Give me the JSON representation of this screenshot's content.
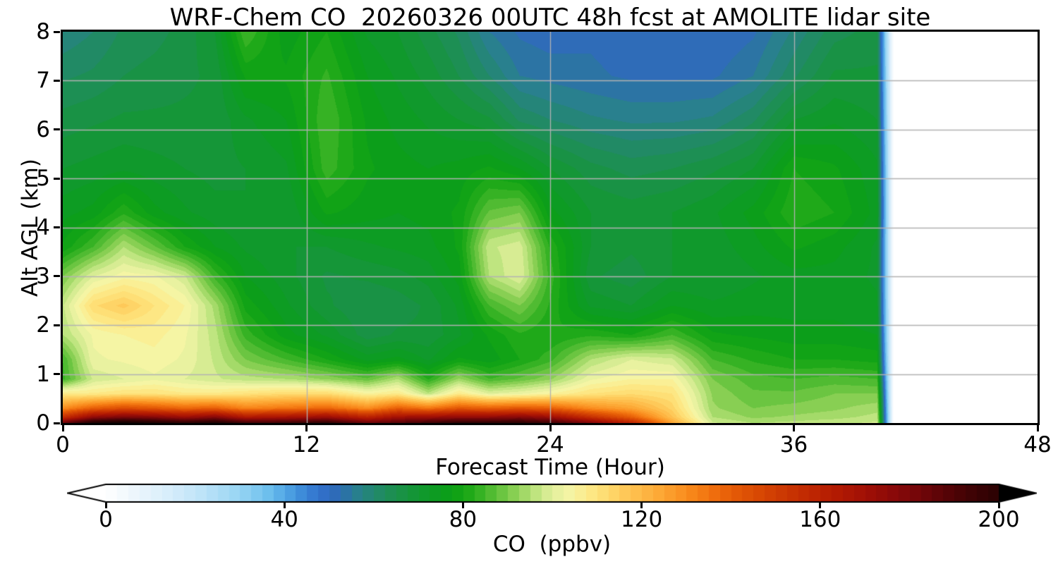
{
  "title": "WRF-Chem CO  20260326 00UTC 48h fcst at AMOLITE lidar site",
  "plot": {
    "xlabel": "Forecast Time (Hour)",
    "ylabel": "Alt AGL (km)",
    "x_ticks": [
      "0",
      "12",
      "24",
      "36",
      "48"
    ],
    "x_tick_values": [
      0,
      12,
      24,
      36,
      48
    ],
    "y_ticks": [
      "0",
      "1",
      "2",
      "3",
      "4",
      "5",
      "6",
      "7",
      "8"
    ],
    "y_tick_values": [
      0,
      1,
      2,
      3,
      4,
      5,
      6,
      7,
      8
    ],
    "xlim": [
      0,
      48
    ],
    "ylim": [
      0,
      8
    ],
    "grid": true,
    "grid_color": "#b2b2b2",
    "frame_color": "#000000"
  },
  "colorbar": {
    "label": "CO  (ppbv)",
    "ticks": [
      "0",
      "40",
      "80",
      "120",
      "160",
      "200"
    ],
    "tick_values": [
      0,
      40,
      80,
      120,
      160,
      200
    ],
    "vmin": 0,
    "vmax": 200,
    "level_step": 2.5,
    "extend": "both",
    "under_color": "#ffffff",
    "over_color": "#000000"
  },
  "chart_data": {
    "type": "heatmap",
    "title": "WRF-Chem CO  20260326 00UTC 48h fcst at AMOLITE lidar site",
    "xlabel": "Forecast Time (Hour)",
    "ylabel": "Alt AGL (km)",
    "zlabel": "CO (ppbv)",
    "x_range_hours": [
      0,
      48
    ],
    "y_range_km": [
      0,
      8
    ],
    "data_ends_at_hour": 40.5,
    "note": "Filled contour of CO (ppbv) vs forecast hour and altitude AGL; values after ~hour 40.5 are missing (white). Rows correspond to y_alt_km (ascending), columns to x_hours.",
    "x_hours": [
      0,
      1.5,
      3,
      4.5,
      6,
      7.5,
      9,
      11,
      13,
      15,
      16.5,
      18,
      19.5,
      21,
      22.5,
      24,
      26,
      28,
      30,
      32,
      34,
      36,
      38,
      40.1,
      40.9,
      48
    ],
    "y_alt_km": [
      0,
      0.12,
      0.3,
      0.6,
      0.9,
      1.3,
      1.8,
      2.4,
      3.0,
      3.6,
      4.3,
      5.2,
      6.2,
      7.1,
      8.0
    ],
    "values_ppbv_rows_by_alt": [
      [
        185,
        205,
        210,
        205,
        200,
        205,
        195,
        195,
        200,
        185,
        190,
        195,
        200,
        200,
        200,
        195,
        180,
        160,
        125,
        98,
        95,
        96,
        97,
        98,
        0,
        0
      ],
      [
        155,
        175,
        180,
        178,
        172,
        178,
        165,
        168,
        172,
        160,
        170,
        172,
        175,
        175,
        178,
        172,
        155,
        140,
        118,
        95,
        92,
        93,
        94,
        96,
        0,
        0
      ],
      [
        130,
        140,
        145,
        142,
        138,
        140,
        132,
        135,
        138,
        130,
        140,
        135,
        142,
        140,
        142,
        140,
        130,
        125,
        114,
        93,
        90,
        91,
        92,
        94,
        0,
        0
      ],
      [
        108,
        108,
        110,
        110,
        108,
        108,
        110,
        112,
        112,
        105,
        108,
        96,
        108,
        100,
        102,
        105,
        110,
        112,
        110,
        92,
        88,
        88,
        90,
        90,
        0,
        0
      ],
      [
        84,
        98,
        100,
        102,
        100,
        98,
        96,
        95,
        92,
        88,
        95,
        82,
        93,
        85,
        88,
        92,
        102,
        105,
        105,
        90,
        86,
        85,
        86,
        85,
        0,
        0
      ],
      [
        85,
        102,
        103,
        104,
        102,
        97,
        90,
        85,
        80,
        74,
        76,
        72,
        78,
        76,
        80,
        84,
        95,
        100,
        98,
        85,
        82,
        80,
        80,
        79,
        0,
        0
      ],
      [
        95,
        103,
        105,
        106,
        103,
        96,
        84,
        76,
        72,
        66,
        68,
        68,
        72,
        78,
        82,
        80,
        82,
        80,
        85,
        78,
        77,
        76,
        76,
        75,
        0,
        0
      ],
      [
        97,
        112,
        116,
        110,
        105,
        94,
        79,
        73,
        68,
        65,
        66,
        68,
        73,
        85,
        90,
        82,
        72,
        70,
        75,
        73,
        74,
        74,
        74,
        73,
        0,
        0
      ],
      [
        90,
        100,
        104,
        103,
        98,
        84,
        75,
        71,
        67,
        68,
        69,
        71,
        76,
        95,
        100,
        84,
        68,
        66,
        70,
        70,
        72,
        74,
        74,
        72,
        0,
        0
      ],
      [
        78,
        85,
        95,
        88,
        80,
        75,
        72,
        70,
        70,
        72,
        73,
        74,
        78,
        97,
        99,
        82,
        70,
        68,
        70,
        71,
        74,
        78,
        76,
        72,
        0,
        0
      ],
      [
        74,
        76,
        82,
        76,
        73,
        71,
        70,
        70,
        78,
        76,
        75,
        76,
        78,
        88,
        90,
        76,
        70,
        69,
        70,
        72,
        76,
        82,
        80,
        74,
        0,
        0
      ],
      [
        70,
        71,
        72,
        71,
        70,
        69,
        70,
        72,
        84,
        78,
        76,
        75,
        76,
        78,
        75,
        70,
        66,
        64,
        65,
        67,
        70,
        80,
        78,
        73,
        0,
        0
      ],
      [
        66,
        67,
        68,
        68,
        68,
        68,
        72,
        75,
        85,
        77,
        74,
        72,
        70,
        68,
        62,
        60,
        58,
        57,
        57,
        58,
        62,
        70,
        72,
        70,
        0,
        0
      ],
      [
        62,
        63,
        65,
        66,
        67,
        68,
        78,
        78,
        83,
        75,
        72,
        69,
        65,
        60,
        55,
        54,
        53,
        52,
        52,
        52,
        55,
        62,
        68,
        68,
        0,
        0
      ],
      [
        58,
        60,
        63,
        64,
        66,
        70,
        85,
        76,
        80,
        72,
        70,
        66,
        62,
        55,
        52,
        51,
        52,
        51,
        50,
        50,
        52,
        58,
        64,
        66,
        0,
        0
      ]
    ],
    "colormap_stops": [
      [
        0,
        "#ffffff"
      ],
      [
        6,
        "#eef7fd"
      ],
      [
        14,
        "#d8eefb"
      ],
      [
        22,
        "#bce3f8"
      ],
      [
        30,
        "#97d5f4"
      ],
      [
        36,
        "#6fc1ee"
      ],
      [
        40,
        "#52a8e6"
      ],
      [
        44,
        "#3d8bd9"
      ],
      [
        48,
        "#3270cc"
      ],
      [
        52,
        "#2e6bb4"
      ],
      [
        56,
        "#297f90"
      ],
      [
        60,
        "#23886e"
      ],
      [
        64,
        "#1d8f52"
      ],
      [
        68,
        "#16953b"
      ],
      [
        72,
        "#0f9a29"
      ],
      [
        76,
        "#0b9e1b"
      ],
      [
        80,
        "#14a513"
      ],
      [
        84,
        "#38b325"
      ],
      [
        88,
        "#63c23c"
      ],
      [
        92,
        "#90d258"
      ],
      [
        96,
        "#bde47e"
      ],
      [
        100,
        "#e3f09d"
      ],
      [
        104,
        "#f6f5a5"
      ],
      [
        108,
        "#fdea89"
      ],
      [
        112,
        "#fedc71"
      ],
      [
        116,
        "#feca5a"
      ],
      [
        120,
        "#feb947"
      ],
      [
        124,
        "#fda835"
      ],
      [
        128,
        "#fb9626"
      ],
      [
        132,
        "#f78317"
      ],
      [
        136,
        "#f06f0e"
      ],
      [
        140,
        "#e65d07"
      ],
      [
        146,
        "#d94904"
      ],
      [
        152,
        "#cb3703"
      ],
      [
        158,
        "#bf2702"
      ],
      [
        164,
        "#b21a03"
      ],
      [
        170,
        "#a11006"
      ],
      [
        176,
        "#8c0a09"
      ],
      [
        182,
        "#730609"
      ],
      [
        188,
        "#580407"
      ],
      [
        194,
        "#3e0305"
      ],
      [
        200,
        "#2a0203"
      ],
      [
        215,
        "#000000"
      ]
    ]
  }
}
